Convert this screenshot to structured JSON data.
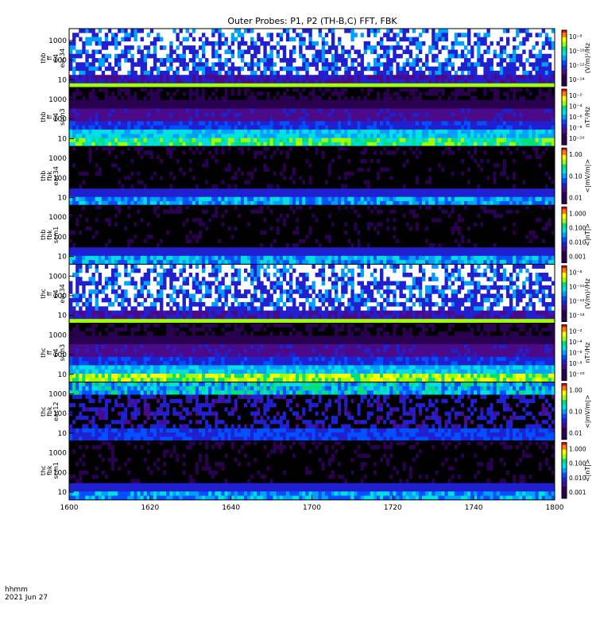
{
  "chart_data": {
    "type": "heatmap",
    "title": "Outer Probes: P1, P2 (TH-B,C) FFT, FBK",
    "x": {
      "label_line1": "hhmm",
      "label_line2": "2021 Jun 27",
      "ticks": [
        "1600",
        "1620",
        "1640",
        "1700",
        "1720",
        "1740",
        "1800"
      ],
      "range_hhmm": [
        "1600",
        "1800"
      ]
    },
    "panels": [
      {
        "id": "thb_ff_eac34",
        "ylabel": [
          "thb",
          "ff",
          "64",
          "eac34"
        ],
        "yscale": "log",
        "yticks": [
          "10",
          "100",
          "1000"
        ],
        "colorbar": {
          "unit": "(V/m)²/Hz",
          "ticks": [
            "10⁻⁸",
            "10⁻¹⁰",
            "10⁻¹²",
            "10⁻¹⁴"
          ]
        },
        "pattern": "spiky"
      },
      {
        "id": "thb_ff_scm3",
        "ylabel": [
          "thb",
          "ff",
          "64",
          "scm3"
        ],
        "yscale": "log",
        "yticks": [
          "10",
          "100",
          "1000"
        ],
        "colorbar": {
          "unit": "nT²/Hz",
          "ticks": [
            "10⁻²",
            "10⁻⁴",
            "10⁻⁶",
            "10⁻⁸",
            "10⁻¹⁰"
          ]
        },
        "pattern": "banded"
      },
      {
        "id": "thb_fbk_eac34",
        "ylabel": [
          "thb",
          "fbk",
          "eac34"
        ],
        "yscale": "log",
        "yticks": [
          "10",
          "100",
          "1000"
        ],
        "colorbar": {
          "unit": "<|mV/m|>",
          "ticks": [
            "1.00",
            "0.10",
            "0.01"
          ]
        },
        "pattern": "fbk-dark"
      },
      {
        "id": "thb_fbk_scm1",
        "ylabel": [
          "thb",
          "fbk",
          "scm1"
        ],
        "yscale": "log",
        "yticks": [
          "10",
          "100",
          "1000"
        ],
        "colorbar": {
          "unit": "<|nT|>",
          "ticks": [
            "1.000",
            "0.100",
            "0.010",
            "0.001"
          ]
        },
        "pattern": "fbk-dark"
      },
      {
        "id": "thc_ff_eac34",
        "ylabel": [
          "thc",
          "ff",
          "64",
          "eac34"
        ],
        "yscale": "log",
        "yticks": [
          "10",
          "100",
          "1000"
        ],
        "colorbar": {
          "unit": "(V/m)²/Hz",
          "ticks": [
            "10⁻⁸",
            "10⁻¹⁰",
            "10⁻¹²",
            "10⁻¹⁴"
          ]
        },
        "pattern": "spiky"
      },
      {
        "id": "thc_ff_scm3",
        "ylabel": [
          "thc",
          "ff",
          "64",
          "scm3"
        ],
        "yscale": "log",
        "yticks": [
          "10",
          "100",
          "1000"
        ],
        "colorbar": {
          "unit": "nT²/Hz",
          "ticks": [
            "10⁻²",
            "10⁻⁴",
            "10⁻⁶",
            "10⁻⁸",
            "10⁻¹⁰"
          ]
        },
        "pattern": "banded-bright"
      },
      {
        "id": "thc_fbk_eac12",
        "ylabel": [
          "thc",
          "fbk",
          "eac12"
        ],
        "yscale": "log",
        "yticks": [
          "10",
          "100",
          "1000"
        ],
        "colorbar": {
          "unit": "<|mV/m|>",
          "ticks": [
            "1.00",
            "0.10",
            "0.01"
          ]
        },
        "pattern": "fbk-mixed"
      },
      {
        "id": "thc_fbk_scm1",
        "ylabel": [
          "thc",
          "fbk",
          "scm1"
        ],
        "yscale": "log",
        "yticks": [
          "10",
          "100",
          "1000"
        ],
        "colorbar": {
          "unit": "<|nT|>",
          "ticks": [
            "1.000",
            "0.100",
            "0.010",
            "0.001"
          ]
        },
        "pattern": "fbk-dark"
      }
    ],
    "colormap": [
      "#000000",
      "#2a0050",
      "#4b0a8a",
      "#2020d0",
      "#0050ff",
      "#00a0ff",
      "#00e0e0",
      "#00e080",
      "#a0ff00",
      "#ffff00",
      "#ff8000",
      "#ff0000"
    ],
    "grid": false,
    "legend": "colorbars right of each panel"
  }
}
